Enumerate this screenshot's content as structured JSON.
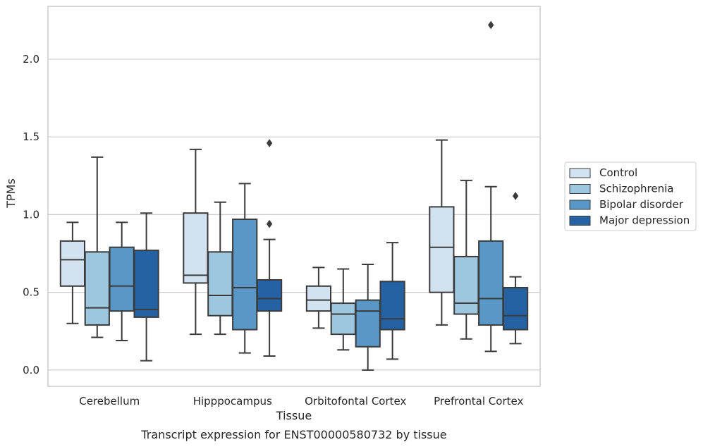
{
  "chart_data": {
    "type": "box",
    "caption": "Transcript expression for ENST00000580732 by tissue",
    "xlabel": "Tissue",
    "ylabel": "TPMs",
    "ylim": [
      -0.105,
      2.34
    ],
    "yticks": [
      "0.0",
      "0.5",
      "1.0",
      "1.5",
      "2.0"
    ],
    "ytick_values": [
      0,
      0.5,
      1.0,
      1.5,
      2.0
    ],
    "grid": "horizontal",
    "legend_position": "right",
    "categories": [
      "Cerebellum",
      "Hipppocampus",
      "Orbitofontal Cortex",
      "Prefrontal Cortex"
    ],
    "series": [
      {
        "name": "Control",
        "color": "#d2e2f1",
        "boxes": [
          {
            "whislo": 0.3,
            "q1": 0.54,
            "med": 0.71,
            "q3": 0.83,
            "whishi": 0.95,
            "fliers": []
          },
          {
            "whislo": 0.23,
            "q1": 0.56,
            "med": 0.61,
            "q3": 1.01,
            "whishi": 1.42,
            "fliers": []
          },
          {
            "whislo": 0.27,
            "q1": 0.38,
            "med": 0.45,
            "q3": 0.54,
            "whishi": 0.66,
            "fliers": []
          },
          {
            "whislo": 0.29,
            "q1": 0.5,
            "med": 0.79,
            "q3": 1.05,
            "whishi": 1.48,
            "fliers": []
          }
        ]
      },
      {
        "name": "Schizophrenia",
        "color": "#9dc6df",
        "boxes": [
          {
            "whislo": 0.21,
            "q1": 0.29,
            "med": 0.4,
            "q3": 0.76,
            "whishi": 1.37,
            "fliers": []
          },
          {
            "whislo": 0.23,
            "q1": 0.35,
            "med": 0.48,
            "q3": 0.76,
            "whishi": 1.08,
            "fliers": []
          },
          {
            "whislo": 0.13,
            "q1": 0.23,
            "med": 0.36,
            "q3": 0.43,
            "whishi": 0.65,
            "fliers": []
          },
          {
            "whislo": 0.2,
            "q1": 0.36,
            "med": 0.43,
            "q3": 0.73,
            "whishi": 1.22,
            "fliers": []
          }
        ]
      },
      {
        "name": "Bipolar disorder",
        "color": "#5998c6",
        "boxes": [
          {
            "whislo": 0.19,
            "q1": 0.38,
            "med": 0.54,
            "q3": 0.79,
            "whishi": 0.95,
            "fliers": []
          },
          {
            "whislo": 0.11,
            "q1": 0.26,
            "med": 0.53,
            "q3": 0.97,
            "whishi": 1.2,
            "fliers": []
          },
          {
            "whislo": 0.0,
            "q1": 0.15,
            "med": 0.38,
            "q3": 0.45,
            "whishi": 0.68,
            "fliers": []
          },
          {
            "whislo": 0.12,
            "q1": 0.29,
            "med": 0.46,
            "q3": 0.83,
            "whishi": 1.18,
            "fliers": [
              2.22
            ]
          }
        ]
      },
      {
        "name": "Major depression",
        "color": "#2462a3",
        "boxes": [
          {
            "whislo": 0.06,
            "q1": 0.34,
            "med": 0.39,
            "q3": 0.77,
            "whishi": 1.01,
            "fliers": []
          },
          {
            "whislo": 0.09,
            "q1": 0.38,
            "med": 0.46,
            "q3": 0.58,
            "whishi": 0.84,
            "fliers": [
              0.94,
              1.46
            ]
          },
          {
            "whislo": 0.07,
            "q1": 0.26,
            "med": 0.33,
            "q3": 0.57,
            "whishi": 0.82,
            "fliers": []
          },
          {
            "whislo": 0.17,
            "q1": 0.26,
            "med": 0.35,
            "q3": 0.53,
            "whishi": 0.6,
            "fliers": [
              1.12
            ]
          }
        ]
      }
    ]
  }
}
